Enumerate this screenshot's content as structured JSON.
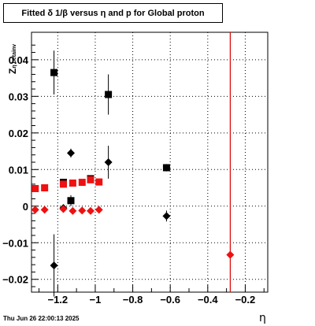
{
  "title": "Fitted δ 1/β versus η and p for Global proton",
  "ylabel": "Z_{η beta inv}",
  "ylabel_main": "Z",
  "ylabel_sub": "η betainv",
  "xlabel": "η",
  "timestamp": "Thu Jun 26 22:00:13 2025",
  "chart_data": {
    "type": "scatter",
    "title": "Fitted δ 1/β versus η and p for Global proton",
    "xlabel": "η",
    "ylabel": "Z_{η betainv}",
    "xlim": [
      -1.34,
      -0.08
    ],
    "ylim": [
      -0.0235,
      0.0475
    ],
    "grid": true,
    "legend": "none",
    "x_ticks": [
      -1.2,
      -1.0,
      -0.8,
      -0.6,
      -0.4,
      -0.2
    ],
    "x_tick_labels": [
      "−1.2",
      "−1",
      "−0.8",
      "−0.6",
      "−0.4",
      "−0.2"
    ],
    "y_ticks": [
      -0.02,
      -0.01,
      0,
      0.01,
      0.02,
      0.03,
      0.04
    ],
    "y_tick_labels": [
      "−0.02",
      "−0.01",
      "0",
      "0.01",
      "0.02",
      "0.03",
      "0.04"
    ],
    "vertical_line": {
      "x": -0.28,
      "color": "#dd0000"
    },
    "series": [
      {
        "marker": "square",
        "color": "#000000",
        "points": [
          {
            "x": -1.22,
            "y": 0.0365,
            "err": 0.006
          },
          {
            "x": -1.17,
            "y": 0.0065,
            "err": 0.0005
          },
          {
            "x": -1.13,
            "y": 0.0015,
            "err": 0.0015
          },
          {
            "x": -1.025,
            "y": 0.0075,
            "err": 0.0005
          },
          {
            "x": -0.93,
            "y": 0.0305,
            "err": 0.0055
          },
          {
            "x": -0.62,
            "y": 0.0105,
            "err": 0.001
          }
        ]
      },
      {
        "marker": "diamond",
        "color": "#000000",
        "points": [
          {
            "x": -1.22,
            "y": -0.0162,
            "err": 0.0085
          },
          {
            "x": -1.17,
            "y": -0.0005,
            "err": 0.0008
          },
          {
            "x": -1.13,
            "y": 0.0145,
            "err": 0.0012
          },
          {
            "x": -0.93,
            "y": 0.012,
            "err": 0.0045
          },
          {
            "x": -0.62,
            "y": -0.0027,
            "err": 0.0015
          }
        ]
      },
      {
        "marker": "square",
        "color": "#ee1111",
        "points": [
          {
            "x": -1.32,
            "y": 0.0048
          },
          {
            "x": -1.27,
            "y": 0.005
          },
          {
            "x": -1.17,
            "y": 0.006
          },
          {
            "x": -1.12,
            "y": 0.0063
          },
          {
            "x": -1.07,
            "y": 0.0065
          },
          {
            "x": -1.025,
            "y": 0.0072
          },
          {
            "x": -0.98,
            "y": 0.0066
          }
        ]
      },
      {
        "marker": "diamond",
        "color": "#ee1111",
        "points": [
          {
            "x": -1.32,
            "y": -0.001
          },
          {
            "x": -1.27,
            "y": -0.001
          },
          {
            "x": -1.17,
            "y": -0.0008
          },
          {
            "x": -1.12,
            "y": -0.0013
          },
          {
            "x": -1.07,
            "y": -0.0012
          },
          {
            "x": -1.025,
            "y": -0.0013
          },
          {
            "x": -0.98,
            "y": -0.001
          },
          {
            "x": -0.28,
            "y": -0.0133
          }
        ]
      }
    ]
  }
}
